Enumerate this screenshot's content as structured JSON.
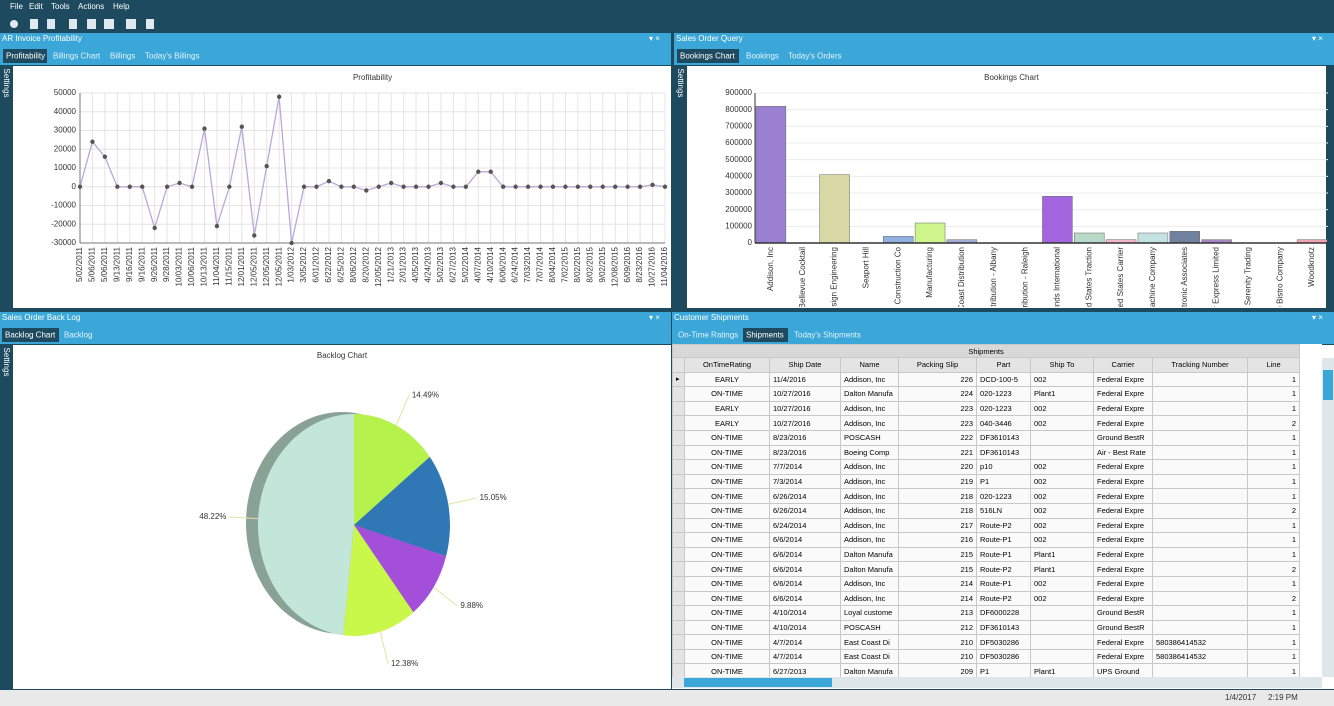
{
  "menu": [
    "File",
    "Edit",
    "Tools",
    "Actions",
    "Help"
  ],
  "panels": [
    {
      "title": "AR Invoice Profitability",
      "tabs": [
        "Profitability",
        "Billings Chart",
        "Billings",
        "Today's Billings"
      ],
      "side": "Settings"
    },
    {
      "title": "Sales Order Query",
      "tabs": [
        "Bookings Chart",
        "Bookings",
        "Today's Orders"
      ],
      "side": "Settings"
    },
    {
      "title": "Sales Order Back Log",
      "tabs": [
        "Backlog Chart",
        "Backlog"
      ],
      "side": "Settings"
    },
    {
      "title": "Customer Shipments",
      "tabs": [
        "On-Time Ratings",
        "Shipments",
        "Today's Shipments"
      ]
    }
  ],
  "chart_data": [
    {
      "type": "line",
      "title": "Profitability",
      "color": "#b9a9d9",
      "marker_color": "#555555",
      "grid": true,
      "categories": [
        "5/02/2011",
        "5/06/2011",
        "5/06/2011",
        "9/13/2011",
        "9/16/2011",
        "9/16/2011",
        "9/26/2011",
        "9/28/2011",
        "10/03/2011",
        "10/06/2011",
        "10/13/2011",
        "11/04/2011",
        "11/15/2011",
        "12/01/2011",
        "12/05/2011",
        "12/05/2011",
        "12/05/2011",
        "1/03/2012",
        "3/05/2012",
        "6/01/2012",
        "6/22/2012",
        "6/25/2012",
        "8/06/2012",
        "8/20/2012",
        "12/05/2012",
        "1/21/2013",
        "2/01/2013",
        "4/05/2013",
        "4/24/2013",
        "5/02/2013",
        "6/27/2013",
        "5/02/2014",
        "4/07/2014",
        "4/10/2014",
        "6/06/2014",
        "6/24/2014",
        "7/03/2014",
        "7/07/2014",
        "8/04/2014",
        "7/02/2015",
        "8/02/2015",
        "8/02/2015",
        "9/02/2015",
        "12/08/2015",
        "6/09/2016",
        "8/23/2016",
        "10/27/2016",
        "11/04/2016"
      ],
      "values": [
        0,
        24000,
        16000,
        0,
        0,
        0,
        -22000,
        0,
        2000,
        0,
        31000,
        -21000,
        0,
        32000,
        -26000,
        11000,
        48000,
        -30000,
        0,
        0,
        3000,
        0,
        0,
        -2000,
        0,
        2000,
        0,
        0,
        0,
        2000,
        0,
        0,
        8000,
        8000,
        0,
        0,
        0,
        0,
        0,
        0,
        0,
        0,
        0,
        0,
        0,
        0,
        1000,
        0
      ],
      "ylim": [
        -30000,
        50000
      ],
      "yticks": [
        -30000,
        -20000,
        -10000,
        0,
        10000,
        20000,
        30000,
        40000,
        50000
      ]
    },
    {
      "type": "bar",
      "title": "Bookings Chart",
      "categories": [
        "Addison, Inc",
        "Bellevue Cocktail",
        "Ensign Engineering",
        "Seaport Hill",
        "Construction Co",
        "Manufacturing",
        "Coast Distribution",
        "istribution - Albany",
        "istribution - Raleigh",
        "Grounds International",
        "United States Traction",
        "United States Carrier",
        "Machine Company",
        "Electronic Associates",
        "Star Express Limited",
        "Serenity Trading",
        "Wine Bistro Company",
        "Woodknotz"
      ],
      "values": [
        820000,
        0,
        410000,
        0,
        40000,
        120000,
        20000,
        0,
        0,
        280000,
        60000,
        20000,
        60000,
        70000,
        20000,
        0,
        0,
        20000
      ],
      "colors": [
        "#9b7fd0",
        "#cccccc",
        "#d8d8a4",
        "#cccccc",
        "#8fb0e0",
        "#cdf58c",
        "#a4acd8",
        "#cccccc",
        "#cccccc",
        "#a364e0",
        "#b8d8c8",
        "#f0b8c8",
        "#c4e2e2",
        "#7082a0",
        "#a488c4",
        "#cccccc",
        "#cccccc",
        "#f0a4b4"
      ],
      "ylim": [
        0,
        900000
      ],
      "yticks": [
        0,
        100000,
        200000,
        300000,
        400000,
        500000,
        600000,
        700000,
        800000,
        900000
      ]
    },
    {
      "type": "pie",
      "title": "Backlog Chart",
      "values": [
        14.49,
        15.05,
        9.88,
        12.38,
        48.22
      ],
      "value_labels": [
        "14.49%",
        "15.05%",
        "9.88%",
        "12.38%",
        "48.22%"
      ],
      "colors": [
        "#b6f24c",
        "#2f77b5",
        "#a44fd9",
        "#c9f74a",
        "#c2e6da"
      ]
    }
  ],
  "table": {
    "title": "Shipments",
    "columns": [
      "OnTimeRating",
      "Ship Date",
      "Name",
      "Packing Slip",
      "Part",
      "Ship To",
      "Carrier",
      "Tracking Number",
      "Line"
    ],
    "rows": [
      [
        "EARLY",
        "11/4/2016",
        "Addison, Inc",
        226,
        "DCD-100-5",
        "002",
        "Federal Expre",
        null,
        1
      ],
      [
        "ON-TIME",
        "10/27/2016",
        "Dalton Manufa",
        224,
        "020-1223",
        "Plant1",
        "Federal Expre",
        null,
        1
      ],
      [
        "EARLY",
        "10/27/2016",
        "Addison, Inc",
        223,
        "020-1223",
        "002",
        "Federal Expre",
        null,
        1
      ],
      [
        "EARLY",
        "10/27/2016",
        "Addison, Inc",
        223,
        "040-3446",
        "002",
        "Federal Expre",
        null,
        2
      ],
      [
        "ON-TIME",
        "8/23/2016",
        "POSCASH",
        222,
        "DF3610143",
        null,
        "Ground BestR",
        null,
        1
      ],
      [
        "ON-TIME",
        "8/23/2016",
        "Boeing Comp",
        221,
        "DF3610143",
        null,
        "Air - Best Rate",
        null,
        1
      ],
      [
        "ON-TIME",
        "7/7/2014",
        "Addison, Inc",
        220,
        "p10",
        "002",
        "Federal Expre",
        null,
        1
      ],
      [
        "ON-TIME",
        "7/3/2014",
        "Addison, Inc",
        219,
        "P1",
        "002",
        "Federal Expre",
        null,
        1
      ],
      [
        "ON-TIME",
        "6/26/2014",
        "Addison, Inc",
        218,
        "020-1223",
        "002",
        "Federal Expre",
        null,
        1
      ],
      [
        "ON-TIME",
        "6/26/2014",
        "Addison, Inc",
        218,
        "516LN",
        "002",
        "Federal Expre",
        null,
        2
      ],
      [
        "ON-TIME",
        "6/24/2014",
        "Addison, Inc",
        217,
        "Route-P2",
        "002",
        "Federal Expre",
        null,
        1
      ],
      [
        "ON-TIME",
        "6/6/2014",
        "Addison, Inc",
        216,
        "Route-P1",
        "002",
        "Federal Expre",
        null,
        1
      ],
      [
        "ON-TIME",
        "6/6/2014",
        "Dalton Manufa",
        215,
        "Route-P1",
        "Plant1",
        "Federal Expre",
        null,
        1
      ],
      [
        "ON-TIME",
        "6/6/2014",
        "Dalton Manufa",
        215,
        "Route-P2",
        "Plant1",
        "Federal Expre",
        null,
        2
      ],
      [
        "ON-TIME",
        "6/6/2014",
        "Addison, Inc",
        214,
        "Route-P1",
        "002",
        "Federal Expre",
        null,
        1
      ],
      [
        "ON-TIME",
        "6/6/2014",
        "Addison, Inc",
        214,
        "Route-P2",
        "002",
        "Federal Expre",
        null,
        2
      ],
      [
        "ON-TIME",
        "4/10/2014",
        "Loyal custome",
        213,
        "DF6000228",
        null,
        "Ground BestR",
        null,
        1
      ],
      [
        "ON-TIME",
        "4/10/2014",
        "POSCASH",
        212,
        "DF3610143",
        null,
        "Ground BestR",
        null,
        1
      ],
      [
        "ON-TIME",
        "4/7/2014",
        "East Coast Di",
        210,
        "DF5030286",
        null,
        "Federal Expre",
        "580386414532",
        1
      ],
      [
        "ON-TIME",
        "4/7/2014",
        "East Coast Di",
        210,
        "DF5030286",
        null,
        "Federal Expre",
        "580386414532",
        1
      ],
      [
        "ON-TIME",
        "6/27/2013",
        "Dalton Manufa",
        209,
        "P1",
        "Plant1",
        "UPS Ground",
        null,
        1
      ]
    ]
  },
  "status": {
    "date": "1/4/2017",
    "time": "2:19 PM"
  }
}
